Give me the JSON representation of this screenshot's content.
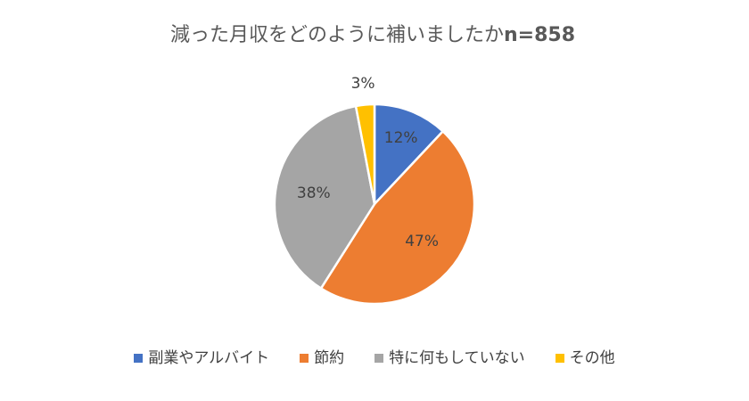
{
  "chart_data": {
    "type": "pie",
    "title": "減った月収をどのように補いましたか",
    "n_label": "n=858",
    "categories": [
      "副業やアルバイト",
      "節約",
      "特に何もしていない",
      "その他"
    ],
    "values": [
      12,
      47,
      38,
      3
    ],
    "value_labels": [
      "12%",
      "47%",
      "38%",
      "3%"
    ],
    "colors": [
      "#4472C4",
      "#ED7D31",
      "#A5A5A5",
      "#FFC000"
    ],
    "legend_position": "bottom"
  }
}
